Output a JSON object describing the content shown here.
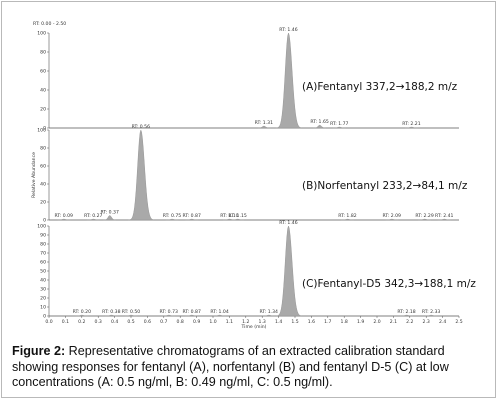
{
  "chart_data": [
    {
      "type": "line",
      "panel": "A",
      "label": "(A)Fentanyl 337,2→188,2 m/z",
      "range_label": "RT: 0.00 - 2.50",
      "ylim": [
        0,
        100
      ],
      "peaks": [
        {
          "rt": 1.46,
          "height": 100,
          "label": "RT: 1.46"
        },
        {
          "rt": 1.31,
          "height": 2,
          "label": "RT: 1.31"
        },
        {
          "rt": 1.65,
          "height": 3,
          "label": "RT: 1.65"
        },
        {
          "rt": 1.77,
          "height": 1,
          "label": "RT: 1.77"
        },
        {
          "rt": 2.21,
          "height": 1,
          "label": "RT: 2.21"
        }
      ],
      "yticks": [
        "100",
        "80",
        "60",
        "40",
        "20",
        "0"
      ]
    },
    {
      "type": "line",
      "panel": "B",
      "label": "(B)Norfentanyl 233,2→84,1 m/z",
      "ylabel": "Relative Abundance",
      "ylim": [
        0,
        100
      ],
      "peaks": [
        {
          "rt": 0.56,
          "height": 100,
          "label": "RT: 0.56"
        },
        {
          "rt": 0.09,
          "height": 1,
          "label": "RT: 0.09"
        },
        {
          "rt": 0.27,
          "height": 1,
          "label": "RT: 0.27"
        },
        {
          "rt": 0.37,
          "height": 5,
          "label": "RT: 0.37"
        },
        {
          "rt": 0.75,
          "height": 1,
          "label": "RT: 0.75"
        },
        {
          "rt": 0.87,
          "height": 1,
          "label": "RT: 0.87"
        },
        {
          "rt": 1.1,
          "height": 1,
          "label": "RT: 1.10"
        },
        {
          "rt": 1.15,
          "height": 1,
          "label": "RT: 1.15"
        },
        {
          "rt": 1.82,
          "height": 1,
          "label": "RT: 1.82"
        },
        {
          "rt": 2.09,
          "height": 1,
          "label": "RT: 2.09"
        },
        {
          "rt": 2.29,
          "height": 1,
          "label": "RT: 2.29"
        },
        {
          "rt": 2.41,
          "height": 1,
          "label": "RT: 2.41"
        }
      ],
      "yticks": [
        "100",
        "80",
        "60",
        "40",
        "20",
        "0"
      ]
    },
    {
      "type": "line",
      "panel": "C",
      "label": "(C)Fentanyl-D5 342,3→188,1 m/z",
      "xlabel": "Time (min)",
      "xlim": [
        0,
        2.5
      ],
      "ylim": [
        0,
        100
      ],
      "peaks": [
        {
          "rt": 1.46,
          "height": 100,
          "label": "RT: 1.46"
        },
        {
          "rt": 0.2,
          "height": 1,
          "label": "RT: 0.20"
        },
        {
          "rt": 0.38,
          "height": 1,
          "label": "RT: 0.38"
        },
        {
          "rt": 0.5,
          "height": 1,
          "label": "RT: 0.50"
        },
        {
          "rt": 0.73,
          "height": 1,
          "label": "RT: 0.73"
        },
        {
          "rt": 0.87,
          "height": 1,
          "label": "RT: 0.87"
        },
        {
          "rt": 1.04,
          "height": 1,
          "label": "RT: 1.04"
        },
        {
          "rt": 1.34,
          "height": 1,
          "label": "RT: 1.34"
        },
        {
          "rt": 2.18,
          "height": 1,
          "label": "RT: 2.18"
        },
        {
          "rt": 2.33,
          "height": 1,
          "label": "RT: 2.33"
        }
      ],
      "yticks": [
        "100",
        "90",
        "80",
        "70",
        "60",
        "50",
        "40",
        "30",
        "20",
        "10",
        "0"
      ],
      "xticks": [
        "0.0",
        "0.1",
        "0.2",
        "0.3",
        "0.4",
        "0.5",
        "0.6",
        "0.7",
        "0.8",
        "0.9",
        "1.0",
        "1.1",
        "1.2",
        "1.3",
        "1.4",
        "1.5",
        "1.6",
        "1.7",
        "1.8",
        "1.9",
        "2.0",
        "2.1",
        "2.2",
        "2.3",
        "2.4",
        "2.5"
      ]
    }
  ],
  "colors": {
    "peak_fill": "#a9a9a9",
    "baseline": "#555555"
  },
  "caption": {
    "label": "Figure 2:",
    "text": " Representative chromatograms of an extracted calibration standard showing responses for fentanyl (A), norfentanyl (B) and fentanyl D-5 (C) at low concentrations (A: 0.5 ng/ml, B: 0.49 ng/ml, C: 0.5 ng/ml)."
  }
}
